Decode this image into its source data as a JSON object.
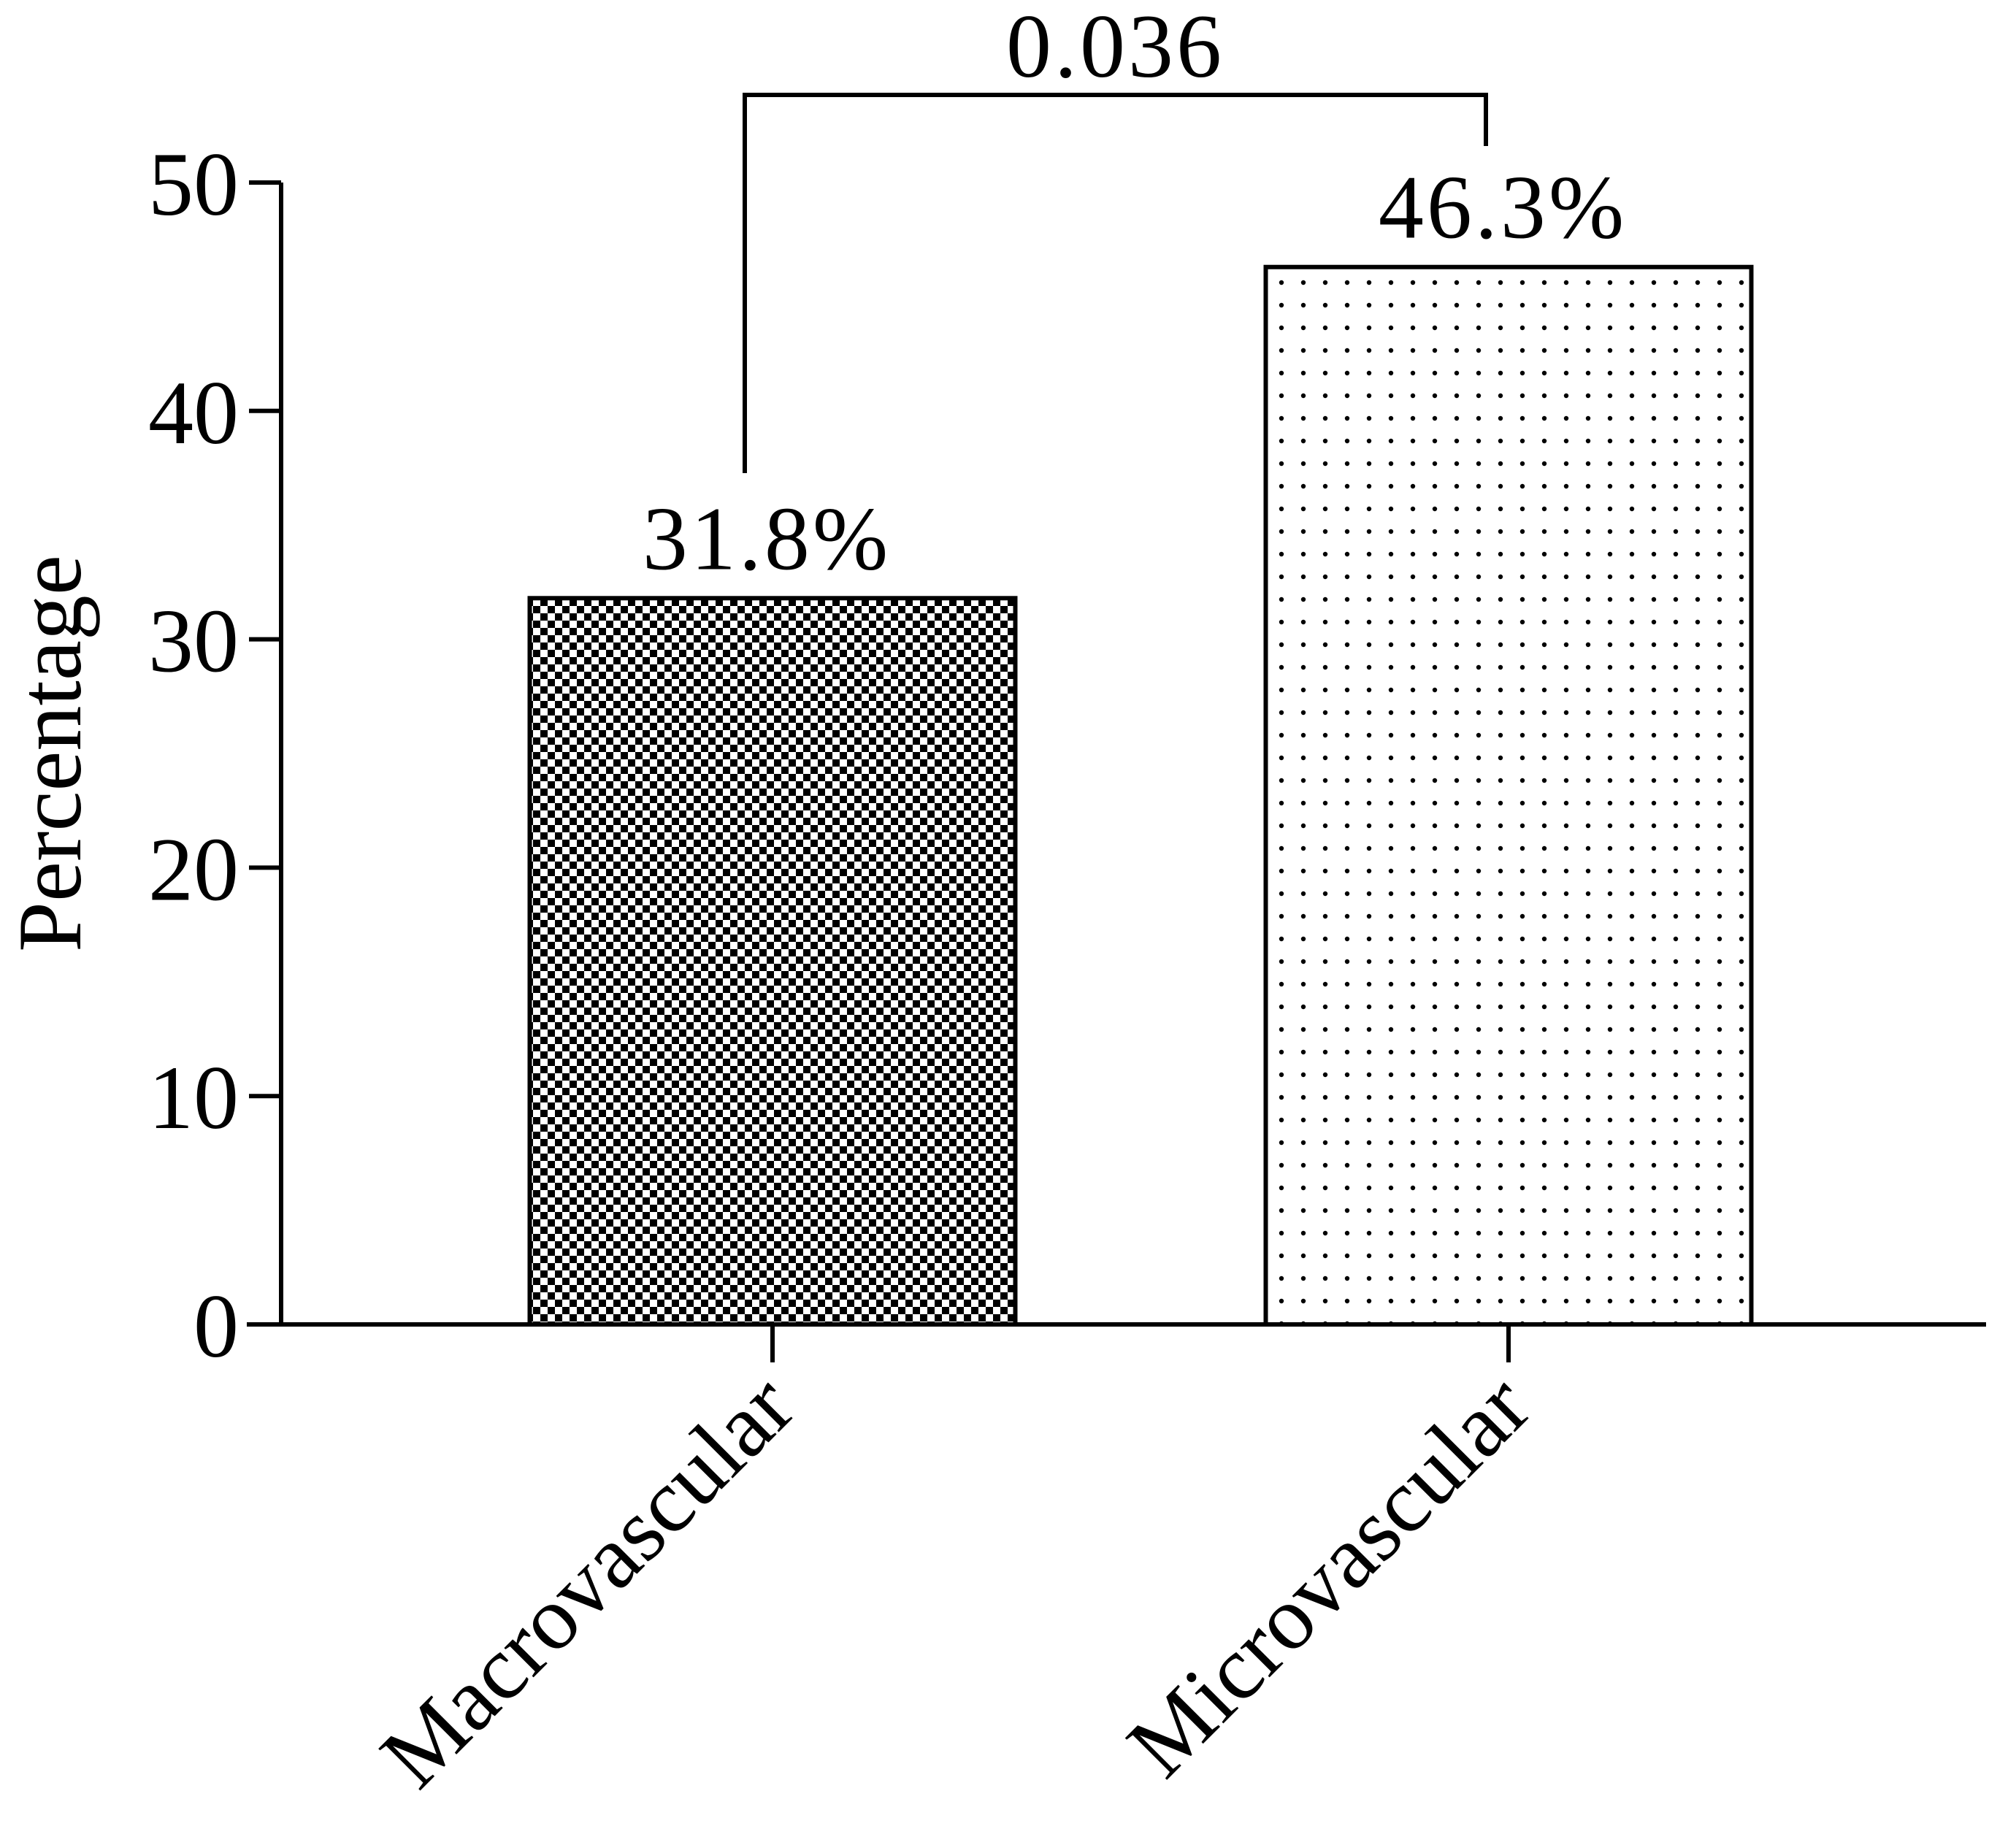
{
  "chart_data": {
    "type": "bar",
    "title": "",
    "xlabel": "",
    "ylabel": "Percentage",
    "ylim": [
      0,
      50
    ],
    "yticks": [
      0,
      10,
      20,
      30,
      40,
      50
    ],
    "categories": [
      "Macrovascular",
      "Microvascular"
    ],
    "values": [
      31.8,
      46.3
    ],
    "data_labels": [
      "31.8%",
      "46.3%"
    ],
    "bar_patterns": [
      "checkerboard",
      "dots"
    ],
    "significance": {
      "between": [
        "Macrovascular",
        "Microvascular"
      ],
      "label": "0.036"
    },
    "grid": false,
    "legend": "none"
  }
}
